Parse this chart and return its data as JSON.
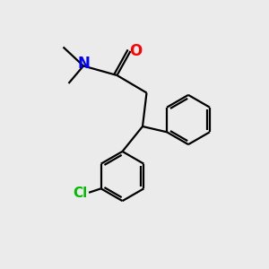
{
  "bg_color": "#ebebeb",
  "line_color": "#000000",
  "nitrogen_color": "#0000ff",
  "oxygen_color": "#ff0000",
  "chlorine_color": "#00bb00",
  "line_width": 1.6,
  "fig_size": [
    3.0,
    3.0
  ],
  "dpi": 100,
  "xlim": [
    0,
    10
  ],
  "ylim": [
    0,
    10
  ]
}
